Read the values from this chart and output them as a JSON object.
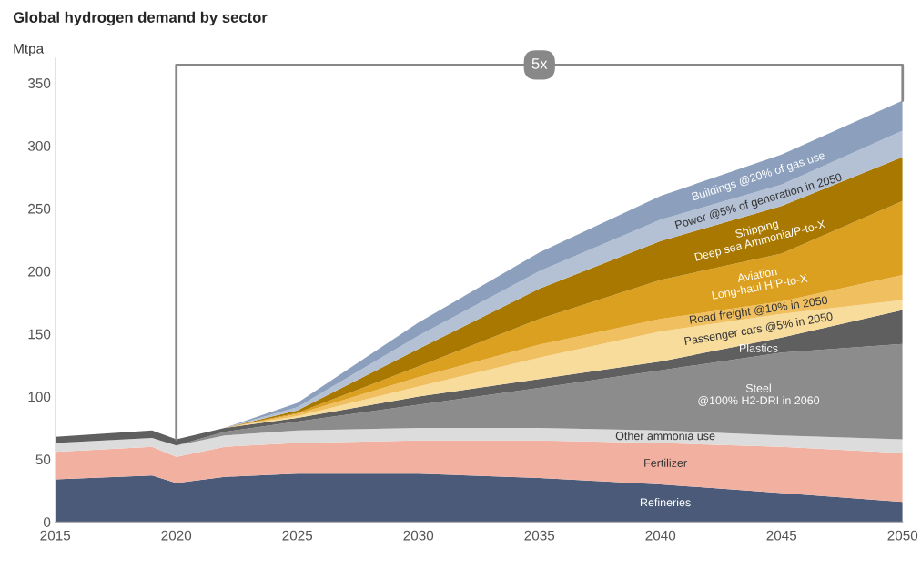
{
  "chart_data": {
    "type": "area",
    "stacked": true,
    "title": "Global hydrogen demand by sector",
    "ylabel": "Mtpa",
    "x": [
      2015,
      2019,
      2020,
      2022,
      2025,
      2030,
      2035,
      2040,
      2045,
      2050
    ],
    "xlim": [
      2015,
      2050
    ],
    "xticks": [
      2015,
      2020,
      2025,
      2030,
      2035,
      2040,
      2045,
      2050
    ],
    "ylim": [
      0,
      370
    ],
    "yticks": [
      0,
      50,
      100,
      150,
      200,
      250,
      300,
      350
    ],
    "grid": false,
    "legend": false,
    "annotations": [
      "5x"
    ],
    "series": [
      {
        "name": "Refineries",
        "color": "#4a5a78",
        "values": [
          34,
          37,
          31,
          36,
          38.5,
          38.5,
          35,
          30,
          23,
          16
        ]
      },
      {
        "name": "Fertilizer",
        "color": "#f2b0a0",
        "values": [
          22,
          23,
          21,
          24,
          24.5,
          26.5,
          30,
          33,
          37,
          39
        ]
      },
      {
        "name": "Other ammonia use",
        "color": "#dcdcdc",
        "values": [
          7,
          7,
          9,
          9,
          10,
          10,
          10,
          10,
          9,
          11
        ]
      },
      {
        "name": "Steel\n@100% H2-DRI in 2060",
        "color": "#8c8c8c",
        "values": [
          0,
          0,
          0,
          3,
          7,
          18.5,
          32,
          48,
          66,
          76
        ]
      },
      {
        "name": "Plastics",
        "color": "#5f5f5f",
        "values": [
          5,
          6,
          5,
          3,
          3,
          6.5,
          7,
          7,
          12,
          27
        ]
      },
      {
        "name": "Passenger cars @5% in 2050",
        "color": "#f8dc9c",
        "values": [
          0,
          0,
          0,
          0,
          1.5,
          8,
          17,
          24,
          19,
          8
        ]
      },
      {
        "name": "Road freight @10% in 2050",
        "color": "#f0c060",
        "values": [
          0,
          0,
          0,
          0,
          1.5,
          7.5,
          10.5,
          10,
          10,
          20
        ]
      },
      {
        "name": "Aviation\nLong-haul H/P-to-X",
        "color": "#dca020",
        "values": [
          0,
          0,
          0,
          0,
          1,
          8.5,
          20.5,
          31,
          38,
          59
        ]
      },
      {
        "name": "Shipping\nDeep sea Ammonia/P-to-X",
        "color": "#a87800",
        "values": [
          0,
          0,
          0,
          0,
          2,
          14,
          24,
          31,
          38,
          35
        ]
      },
      {
        "name": "Power @5% of generation in 2050",
        "color": "#b4c0d4",
        "values": [
          0,
          0,
          0,
          0,
          2.5,
          10.5,
          14,
          17,
          17,
          21
        ]
      },
      {
        "name": "Buildings @20% of gas use",
        "color": "#8ca0be",
        "values": [
          0,
          0,
          0,
          0,
          3.5,
          10.5,
          15,
          19,
          24,
          24
        ]
      }
    ]
  }
}
